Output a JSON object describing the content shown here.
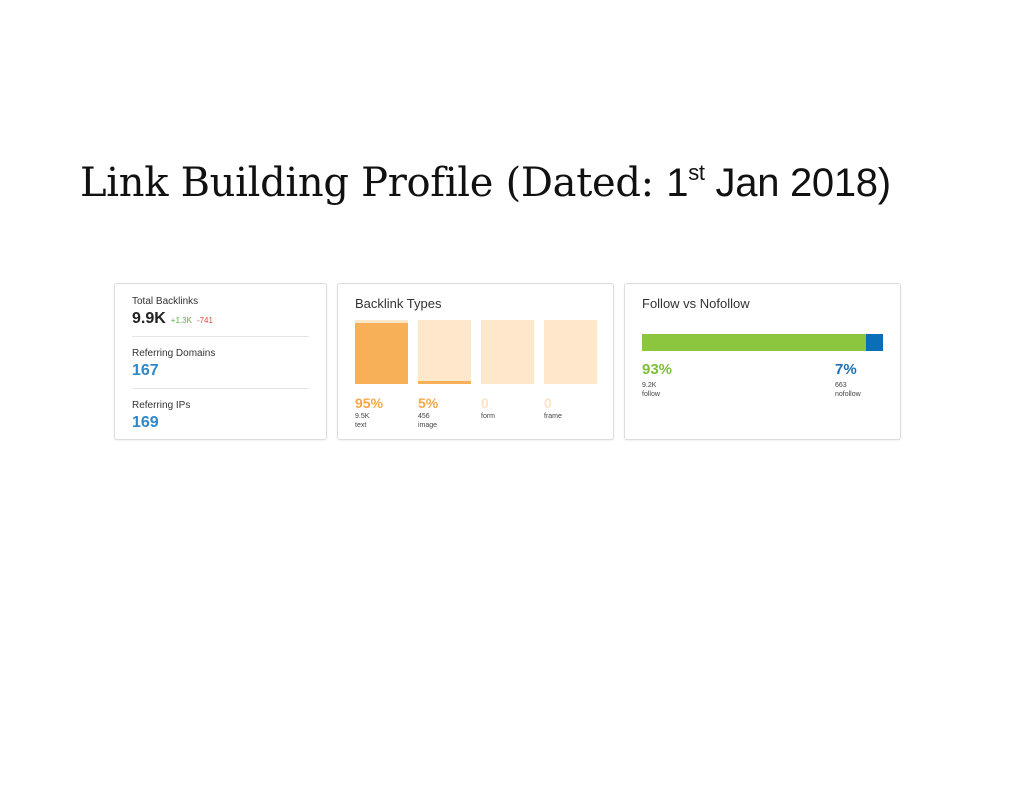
{
  "title": {
    "main": "Link Building Profile (Dated: ",
    "day": "1",
    "suffix": "st",
    "rest": " Jan 2018)"
  },
  "summary": {
    "total_backlinks_label": "Total Backlinks",
    "total_backlinks_value": "9.9K",
    "delta_up": "+1.3K",
    "delta_down": "-741",
    "referring_domains_label": "Referring Domains",
    "referring_domains_value": "167",
    "referring_ips_label": "Referring IPs",
    "referring_ips_value": "169"
  },
  "backlink_types": {
    "title": "Backlink Types",
    "items": [
      {
        "pct": "95%",
        "count": "9.5K",
        "name": "text",
        "share": 0.95
      },
      {
        "pct": "5%",
        "count": "456",
        "name": "image",
        "share": 0.05
      },
      {
        "pct": "0",
        "count": "",
        "name": "form",
        "share": 0
      },
      {
        "pct": "0",
        "count": "",
        "name": "frame",
        "share": 0
      }
    ]
  },
  "follow_nofollow": {
    "title": "Follow vs Nofollow",
    "follow": {
      "pct": "93%",
      "count": "9.2K",
      "name": "follow",
      "share": 0.93
    },
    "nofollow": {
      "pct": "7%",
      "count": "663",
      "name": "nofollow",
      "share": 0.07
    }
  },
  "colors": {
    "orange": "#f8b058",
    "orange_light": "#fde8cc",
    "green": "#8cc63f",
    "blue": "#0a6fb8",
    "link_blue": "#2f88c9"
  }
}
